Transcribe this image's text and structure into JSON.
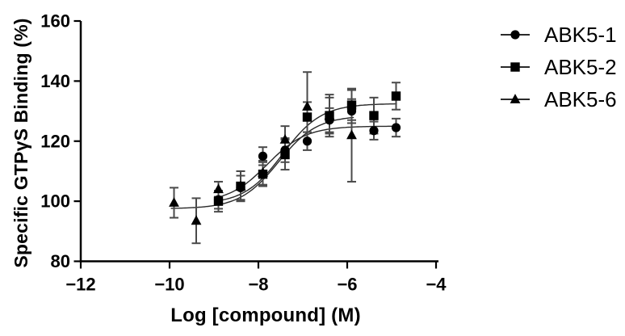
{
  "figure": {
    "background": "#ffffff",
    "axis_color": "#000000",
    "curve_color": "#2a2a2a",
    "error_bar_color": "#4a4a4a",
    "marker_color": "#000000"
  },
  "chart_data": {
    "type": "scatter",
    "subtype": "dose-response curves with sigmoidal fits and error bars",
    "title": "",
    "xlabel": "Log [compound] (M)",
    "ylabel": "Specific GTPγS Binding (%)",
    "xlim": [
      -12,
      -4
    ],
    "ylim": [
      80,
      160
    ],
    "xticks": [
      -12,
      -10,
      -8,
      -6,
      -4
    ],
    "yticks": [
      80,
      100,
      120,
      140,
      160
    ],
    "grid": false,
    "legend_position": "right",
    "series": [
      {
        "name": "ABK5-1",
        "marker": "circle",
        "color": "#000000",
        "zorder": 1,
        "points": [
          {
            "x": -8.9,
            "y": 100.5,
            "err": 3
          },
          {
            "x": -8.4,
            "y": 104.5,
            "err": 4
          },
          {
            "x": -7.9,
            "y": 115,
            "err": 3
          },
          {
            "x": -7.4,
            "y": 117,
            "err": 4
          },
          {
            "x": -6.9,
            "y": 120,
            "err": 3
          },
          {
            "x": -6.4,
            "y": 127,
            "err": 4
          },
          {
            "x": -5.9,
            "y": 130,
            "err": 4
          },
          {
            "x": -5.4,
            "y": 123.5,
            "err": 3
          },
          {
            "x": -4.9,
            "y": 124.5,
            "err": 3
          }
        ],
        "fit": {
          "model": "sigmoid",
          "bottom": 99.5,
          "top": 125,
          "logec50": -7.8,
          "hill": 1,
          "xmin": -8.92,
          "xmax": -4.85
        }
      },
      {
        "name": "ABK5-2",
        "marker": "square",
        "color": "#000000",
        "zorder": 3,
        "points": [
          {
            "x": -8.9,
            "y": 100,
            "err": 3.5
          },
          {
            "x": -8.4,
            "y": 105,
            "err": 5
          },
          {
            "x": -7.9,
            "y": 109,
            "err": 4
          },
          {
            "x": -7.4,
            "y": 115.5,
            "err": 5
          },
          {
            "x": -6.9,
            "y": 128,
            "err": 5
          },
          {
            "x": -6.4,
            "y": 128.5,
            "err": 7
          },
          {
            "x": -5.9,
            "y": 132,
            "err": 5
          },
          {
            "x": -5.4,
            "y": 128.5,
            "err": 6
          },
          {
            "x": -4.9,
            "y": 135,
            "err": 4.5
          }
        ],
        "fit": {
          "model": "sigmoid",
          "bottom": 99,
          "top": 132.5,
          "logec50": -7.45,
          "hill": 1,
          "xmin": -8.92,
          "xmax": -4.85
        }
      },
      {
        "name": "ABK5-6",
        "marker": "triangle",
        "color": "#000000",
        "zorder": 2,
        "points": [
          {
            "x": -9.9,
            "y": 99.5,
            "err": 5
          },
          {
            "x": -9.4,
            "y": 93.5,
            "err": 7.5
          },
          {
            "x": -8.9,
            "y": 104,
            "err": 2.5
          },
          {
            "x": -8.4,
            "y": 105,
            "err": 5
          },
          {
            "x": -7.9,
            "y": 109.5,
            "err": 4
          },
          {
            "x": -7.4,
            "y": 120.5,
            "err": 4.5
          },
          {
            "x": -6.9,
            "y": 131.5,
            "err": 11.5
          },
          {
            "x": -6.4,
            "y": 128.5,
            "err": 6
          },
          {
            "x": -5.9,
            "y": 122,
            "err": 15.5
          }
        ],
        "fit": {
          "model": "sigmoid",
          "bottom": 97.5,
          "top": 128.5,
          "logec50": -7.55,
          "hill": 1,
          "xmin": -9.97,
          "xmax": -5.85
        }
      }
    ]
  }
}
